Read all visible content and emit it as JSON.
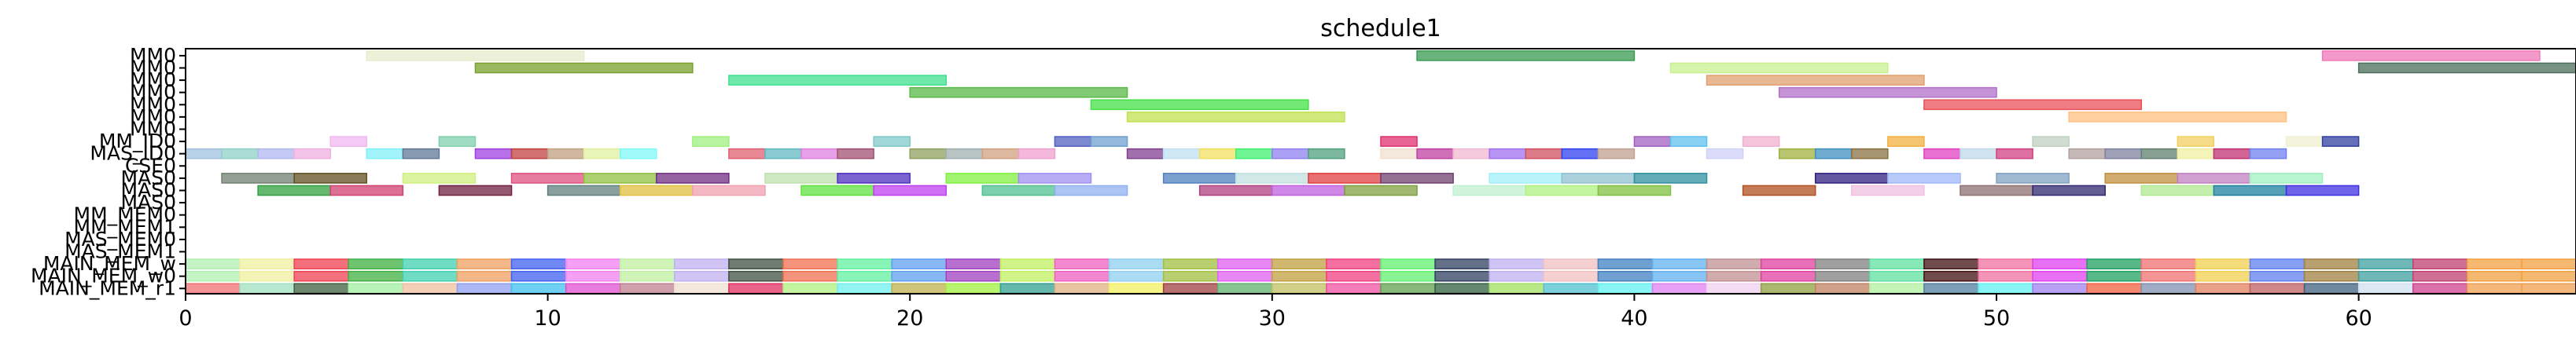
{
  "chart_data": {
    "type": "gantt",
    "title": "schedule1",
    "xlabel": "",
    "ylabel": "",
    "xlim": [
      0,
      66
    ],
    "x_ticks": [
      0,
      10,
      20,
      30,
      40,
      50,
      60
    ],
    "grid": false,
    "legend": "none",
    "rows": [
      "MM0",
      "MM0",
      "MM0",
      "MM0",
      "MM0",
      "MM0",
      "MM0",
      "MM_ID0",
      "MAS_ID0",
      "CSE0",
      "MAS0",
      "MAS0",
      "MAS0",
      "MM_MEM0",
      "MM_MEM1",
      "MAS_MEM0",
      "MAS_MEM1",
      "MAIN_MEM_w",
      "MAIN_MEM_w0",
      "MAIN_MEM_r1"
    ],
    "tasks": [
      {
        "row": 0,
        "start": 5.0,
        "end": 11.0,
        "color": "#e8eccc"
      },
      {
        "row": 0,
        "start": 34.0,
        "end": 40.0,
        "color": "#3a9a52"
      },
      {
        "row": 0,
        "start": 59.0,
        "end": 65.0,
        "color": "#f078b8"
      },
      {
        "row": 1,
        "start": 8.0,
        "end": 14.0,
        "color": "#7aa02e"
      },
      {
        "row": 1,
        "start": 41.0,
        "end": 47.0,
        "color": "#c8f090"
      },
      {
        "row": 1,
        "start": 60.0,
        "end": 66.0,
        "color": "#4a6e5a"
      },
      {
        "row": 2,
        "start": 15.0,
        "end": 21.0,
        "color": "#40e090"
      },
      {
        "row": 2,
        "start": 42.0,
        "end": 48.0,
        "color": "#e0a070"
      },
      {
        "row": 3,
        "start": 20.0,
        "end": 26.0,
        "color": "#5ab84a"
      },
      {
        "row": 3,
        "start": 44.0,
        "end": 50.0,
        "color": "#b070c8"
      },
      {
        "row": 4,
        "start": 25.0,
        "end": 31.0,
        "color": "#46e046"
      },
      {
        "row": 4,
        "start": 48.0,
        "end": 54.0,
        "color": "#e85058"
      },
      {
        "row": 5,
        "start": 26.0,
        "end": 32.0,
        "color": "#c0e050"
      },
      {
        "row": 5,
        "start": 52.0,
        "end": 58.0,
        "color": "#ffc080"
      },
      {
        "row": 7,
        "start": 4.0,
        "end": 5.0,
        "color": "#f0b8f0"
      },
      {
        "row": 7,
        "start": 7.0,
        "end": 8.0,
        "color": "#80d0b0"
      },
      {
        "row": 7,
        "start": 14.0,
        "end": 15.0,
        "color": "#a0f080"
      },
      {
        "row": 7,
        "start": 19.0,
        "end": 20.0,
        "color": "#80c8c8"
      },
      {
        "row": 7,
        "start": 24.0,
        "end": 25.0,
        "color": "#5060c0"
      },
      {
        "row": 7,
        "start": 25.0,
        "end": 26.0,
        "color": "#70a0d0"
      },
      {
        "row": 7,
        "start": 33.0,
        "end": 34.0,
        "color": "#e03070"
      },
      {
        "row": 7,
        "start": 40.0,
        "end": 41.0,
        "color": "#a060c0"
      },
      {
        "row": 7,
        "start": 41.0,
        "end": 42.0,
        "color": "#60c0f0"
      },
      {
        "row": 7,
        "start": 43.0,
        "end": 44.0,
        "color": "#f0b0d0"
      },
      {
        "row": 7,
        "start": 47.0,
        "end": 48.0,
        "color": "#f0b040"
      },
      {
        "row": 7,
        "start": 51.0,
        "end": 52.0,
        "color": "#c0d0c0"
      },
      {
        "row": 7,
        "start": 55.0,
        "end": 56.0,
        "color": "#f0d060"
      },
      {
        "row": 7,
        "start": 58.0,
        "end": 59.0,
        "color": "#f0f0d0"
      },
      {
        "row": 7,
        "start": 59.0,
        "end": 60.0,
        "color": "#3040a0"
      },
      {
        "row": 8,
        "start": 0.0,
        "end": 1.0,
        "color": "#a0c0e0"
      },
      {
        "row": 8,
        "start": 1.0,
        "end": 2.0,
        "color": "#90d0c8"
      },
      {
        "row": 8,
        "start": 2.0,
        "end": 3.0,
        "color": "#b0b8f0"
      },
      {
        "row": 8,
        "start": 3.0,
        "end": 4.0,
        "color": "#f0b0e0"
      },
      {
        "row": 8,
        "start": 5.0,
        "end": 6.0,
        "color": "#80f0f8"
      },
      {
        "row": 8,
        "start": 6.0,
        "end": 7.0,
        "color": "#607898"
      },
      {
        "row": 8,
        "start": 8.0,
        "end": 9.0,
        "color": "#a040e0"
      },
      {
        "row": 8,
        "start": 9.0,
        "end": 10.0,
        "color": "#c04040"
      },
      {
        "row": 8,
        "start": 10.0,
        "end": 11.0,
        "color": "#c0a080"
      },
      {
        "row": 8,
        "start": 11.0,
        "end": 12.0,
        "color": "#e0f0a0"
      },
      {
        "row": 8,
        "start": 12.0,
        "end": 13.0,
        "color": "#80f8f8"
      },
      {
        "row": 8,
        "start": 15.0,
        "end": 16.0,
        "color": "#e06070"
      },
      {
        "row": 8,
        "start": 16.0,
        "end": 17.0,
        "color": "#60b8c0"
      },
      {
        "row": 8,
        "start": 17.0,
        "end": 18.0,
        "color": "#e080e0"
      },
      {
        "row": 8,
        "start": 18.0,
        "end": 19.0,
        "color": "#a05070"
      },
      {
        "row": 8,
        "start": 20.0,
        "end": 21.0,
        "color": "#90a060"
      },
      {
        "row": 8,
        "start": 21.0,
        "end": 22.0,
        "color": "#a0b0b0"
      },
      {
        "row": 8,
        "start": 22.0,
        "end": 23.0,
        "color": "#d0a080"
      },
      {
        "row": 8,
        "start": 23.0,
        "end": 24.0,
        "color": "#f0a0d0"
      },
      {
        "row": 8,
        "start": 26.0,
        "end": 27.0,
        "color": "#804090"
      },
      {
        "row": 8,
        "start": 27.0,
        "end": 28.0,
        "color": "#c0e0f0"
      },
      {
        "row": 8,
        "start": 28.0,
        "end": 29.0,
        "color": "#f0e060"
      },
      {
        "row": 8,
        "start": 29.0,
        "end": 30.0,
        "color": "#40f070"
      },
      {
        "row": 8,
        "start": 30.0,
        "end": 31.0,
        "color": "#9080f0"
      },
      {
        "row": 8,
        "start": 31.0,
        "end": 32.0,
        "color": "#50a080"
      },
      {
        "row": 8,
        "start": 33.0,
        "end": 34.0,
        "color": "#f0e0d0"
      },
      {
        "row": 8,
        "start": 34.0,
        "end": 35.0,
        "color": "#c040a0"
      },
      {
        "row": 8,
        "start": 35.0,
        "end": 36.0,
        "color": "#f0b8d0"
      },
      {
        "row": 8,
        "start": 36.0,
        "end": 37.0,
        "color": "#a070f0"
      },
      {
        "row": 8,
        "start": 37.0,
        "end": 38.0,
        "color": "#d05060"
      },
      {
        "row": 8,
        "start": 38.0,
        "end": 39.0,
        "color": "#3040f0"
      },
      {
        "row": 8,
        "start": 39.0,
        "end": 40.0,
        "color": "#c0a090"
      },
      {
        "row": 8,
        "start": 42.0,
        "end": 43.0,
        "color": "#d0d0f8"
      },
      {
        "row": 8,
        "start": 44.0,
        "end": 45.0,
        "color": "#a0b040"
      },
      {
        "row": 8,
        "start": 45.0,
        "end": 46.0,
        "color": "#4090c0"
      },
      {
        "row": 8,
        "start": 46.0,
        "end": 47.0,
        "color": "#8a7040"
      },
      {
        "row": 8,
        "start": 48.0,
        "end": 49.0,
        "color": "#e040c0"
      },
      {
        "row": 8,
        "start": 49.0,
        "end": 50.0,
        "color": "#c0d8e8"
      },
      {
        "row": 8,
        "start": 50.0,
        "end": 51.0,
        "color": "#d04080"
      },
      {
        "row": 8,
        "start": 52.0,
        "end": 53.0,
        "color": "#b0a0a0"
      },
      {
        "row": 8,
        "start": 53.0,
        "end": 54.0,
        "color": "#8080a0"
      },
      {
        "row": 8,
        "start": 54.0,
        "end": 55.0,
        "color": "#608070"
      },
      {
        "row": 8,
        "start": 55.0,
        "end": 56.0,
        "color": "#f0f0a0"
      },
      {
        "row": 8,
        "start": 56.0,
        "end": 57.0,
        "color": "#c03070"
      },
      {
        "row": 8,
        "start": 57.0,
        "end": 58.0,
        "color": "#7080f0"
      },
      {
        "row": 10,
        "start": 1.0,
        "end": 3.0,
        "color": "#708070"
      },
      {
        "row": 10,
        "start": 3.0,
        "end": 5.0,
        "color": "#605020"
      },
      {
        "row": 10,
        "start": 6.0,
        "end": 8.0,
        "color": "#d0f080"
      },
      {
        "row": 10,
        "start": 9.0,
        "end": 11.0,
        "color": "#e05080"
      },
      {
        "row": 10,
        "start": 11.0,
        "end": 13.0,
        "color": "#90c040"
      },
      {
        "row": 10,
        "start": 13.0,
        "end": 15.0,
        "color": "#703080"
      },
      {
        "row": 10,
        "start": 16.0,
        "end": 18.0,
        "color": "#c0e0b0"
      },
      {
        "row": 10,
        "start": 18.0,
        "end": 20.0,
        "color": "#5030c0"
      },
      {
        "row": 10,
        "start": 21.0,
        "end": 23.0,
        "color": "#80f040"
      },
      {
        "row": 10,
        "start": 23.0,
        "end": 25.0,
        "color": "#a090f0"
      },
      {
        "row": 10,
        "start": 27.0,
        "end": 29.0,
        "color": "#5080c0"
      },
      {
        "row": 10,
        "start": 29.0,
        "end": 31.0,
        "color": "#c0e0e0"
      },
      {
        "row": 10,
        "start": 31.0,
        "end": 33.0,
        "color": "#e04040"
      },
      {
        "row": 10,
        "start": 33.0,
        "end": 35.0,
        "color": "#704070"
      },
      {
        "row": 10,
        "start": 36.0,
        "end": 38.0,
        "color": "#a0f0f8"
      },
      {
        "row": 10,
        "start": 38.0,
        "end": 40.0,
        "color": "#90c0d0"
      },
      {
        "row": 10,
        "start": 40.0,
        "end": 42.0,
        "color": "#3090a0"
      },
      {
        "row": 10,
        "start": 45.0,
        "end": 47.0,
        "color": "#302080"
      },
      {
        "row": 10,
        "start": 47.0,
        "end": 49.0,
        "color": "#a0b8f8"
      },
      {
        "row": 10,
        "start": 50.0,
        "end": 52.0,
        "color": "#80a0c0"
      },
      {
        "row": 10,
        "start": 53.0,
        "end": 55.0,
        "color": "#c09040"
      },
      {
        "row": 10,
        "start": 55.0,
        "end": 57.0,
        "color": "#c080c0"
      },
      {
        "row": 10,
        "start": 57.0,
        "end": 59.0,
        "color": "#a0f0c0"
      },
      {
        "row": 11,
        "start": 2.0,
        "end": 4.0,
        "color": "#30a040"
      },
      {
        "row": 11,
        "start": 4.0,
        "end": 6.0,
        "color": "#d04070"
      },
      {
        "row": 11,
        "start": 7.0,
        "end": 9.0,
        "color": "#702040"
      },
      {
        "row": 11,
        "start": 10.0,
        "end": 12.0,
        "color": "#608080"
      },
      {
        "row": 11,
        "start": 12.0,
        "end": 14.0,
        "color": "#e0c040"
      },
      {
        "row": 11,
        "start": 14.0,
        "end": 16.0,
        "color": "#f0a0b0"
      },
      {
        "row": 11,
        "start": 17.0,
        "end": 19.0,
        "color": "#60e040"
      },
      {
        "row": 11,
        "start": 19.0,
        "end": 21.0,
        "color": "#c040f0"
      },
      {
        "row": 11,
        "start": 22.0,
        "end": 24.0,
        "color": "#50c090"
      },
      {
        "row": 11,
        "start": 24.0,
        "end": 26.0,
        "color": "#90b0f0"
      },
      {
        "row": 11,
        "start": 28.0,
        "end": 30.0,
        "color": "#b04080"
      },
      {
        "row": 11,
        "start": 30.0,
        "end": 32.0,
        "color": "#c060e0"
      },
      {
        "row": 11,
        "start": 32.0,
        "end": 34.0,
        "color": "#80a040"
      },
      {
        "row": 11,
        "start": 35.0,
        "end": 37.0,
        "color": "#c0f0d0"
      },
      {
        "row": 11,
        "start": 37.0,
        "end": 39.0,
        "color": "#b0f080"
      },
      {
        "row": 11,
        "start": 39.0,
        "end": 41.0,
        "color": "#80c040"
      },
      {
        "row": 11,
        "start": 43.0,
        "end": 45.0,
        "color": "#b05020"
      },
      {
        "row": 11,
        "start": 46.0,
        "end": 48.0,
        "color": "#f0c0e0"
      },
      {
        "row": 11,
        "start": 49.0,
        "end": 51.0,
        "color": "#907070"
      },
      {
        "row": 11,
        "start": 51.0,
        "end": 53.0,
        "color": "#302870"
      },
      {
        "row": 11,
        "start": 54.0,
        "end": 56.0,
        "color": "#b0e890"
      },
      {
        "row": 11,
        "start": 56.0,
        "end": 58.0,
        "color": "#2080a0"
      },
      {
        "row": 11,
        "start": 58.0,
        "end": 60.0,
        "color": "#4030e0"
      }
    ],
    "mem_rows": [
      {
        "row": 17,
        "start": 0,
        "colors": [
          "#b0f0b0",
          "#f0f0a0",
          "#f04050",
          "#40b040",
          "#40d0b0",
          "#f0a060",
          "#4060f0",
          "#f080f0",
          "#c0f0a0",
          "#c0b0f0",
          "#405040",
          "#f07050",
          "#60f0a0",
          "#60a0f0",
          "#a040c0",
          "#c0f060",
          "#f060c0",
          "#90d0f0",
          "#a0c040",
          "#e060f0",
          "#c0a040",
          "#f04080",
          "#60f070",
          "#304060",
          "#c0b0f0",
          "#f0c0c0",
          "#4080c0",
          "#60b0f0",
          "#c09090",
          "#e040a0",
          "#808080",
          "#60e0a0",
          "#401010",
          "#f070a0",
          "#e040f0",
          "#20a060",
          "#f07070",
          "#f0d050",
          "#6080f0",
          "#a08040",
          "#40a0a0",
          "#c04070",
          "#f0a040",
          "#f0a040"
        ]
      },
      {
        "row": 18,
        "start": 0,
        "colors": [
          "#b0f0b0",
          "#f0f0a0",
          "#f04050",
          "#40b040",
          "#40d0b0",
          "#f0a060",
          "#4060f0",
          "#f080f0",
          "#c0f0a0",
          "#c0b0f0",
          "#405040",
          "#f07050",
          "#60f0a0",
          "#60a0f0",
          "#a040c0",
          "#c0f060",
          "#f060c0",
          "#90d0f0",
          "#a0c040",
          "#e060f0",
          "#c0a040",
          "#f04080",
          "#60f070",
          "#304060",
          "#c0b0f0",
          "#f0c0c0",
          "#4080c0",
          "#60b0f0",
          "#c09090",
          "#e040a0",
          "#808080",
          "#60e0a0",
          "#401010",
          "#f070a0",
          "#e040f0",
          "#20a060",
          "#f07070",
          "#f0d050",
          "#6080f0",
          "#a08040",
          "#40a0a0",
          "#c04070",
          "#f0a040",
          "#f0a040"
        ]
      },
      {
        "row": 19,
        "start": 0,
        "colors": [
          "#f07070",
          "#a0e0c0",
          "#406040",
          "#a0f0a0",
          "#f0c0a0",
          "#90a0f0",
          "#40c0f0",
          "#e050d0",
          "#c08090",
          "#f0e0d0",
          "#e03060",
          "#b0f080",
          "#70f0f0",
          "#c0b050",
          "#a0f040",
          "#30a090",
          "#e0b080",
          "#f0f060",
          "#a04040",
          "#60b070",
          "#c0c060",
          "#f050a0",
          "#60a050",
          "#306040",
          "#a0e060",
          "#50c0d0",
          "#60f0f0",
          "#e080f0",
          "#f0d0f0",
          "#90a040",
          "#c08060",
          "#b0f0a0",
          "#5080a0",
          "#60f0f0",
          "#a080f0",
          "#f06040",
          "#8090b0",
          "#e08060",
          "#c06060",
          "#406080",
          "#d0e0f0",
          "#d04090",
          "#f0a050",
          "#f0a050"
        ]
      }
    ]
  }
}
